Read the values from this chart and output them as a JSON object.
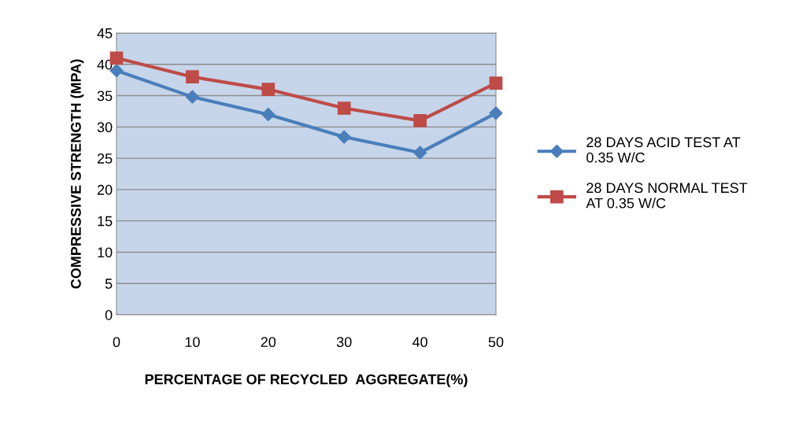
{
  "chart_data": {
    "type": "line",
    "xlabel": "PERCENTAGE OF RECYCLED  AGGREGATE(%)",
    "ylabel": "COMPRESSIVE STRENGTH (MPA)",
    "x": [
      0,
      10,
      20,
      30,
      40,
      50
    ],
    "xlim": [
      0,
      50
    ],
    "xticks": [
      0,
      10,
      20,
      30,
      40,
      50
    ],
    "ylim": [
      0,
      45
    ],
    "yticks": [
      0,
      5,
      10,
      15,
      20,
      25,
      30,
      35,
      40,
      45
    ],
    "grid": "y",
    "legend": "right",
    "series": [
      {
        "name": "28 DAYS ACID TEST AT\n0.35 W/C",
        "color": "#4a7ebb",
        "marker": "diamond",
        "values": [
          39,
          34.8,
          32,
          28.4,
          25.9,
          32.2
        ]
      },
      {
        "name": "28 DAYS NORMAL TEST\nAT 0.35 W/C",
        "color": "#be4b48",
        "marker": "square",
        "values": [
          41,
          38,
          36,
          33,
          31,
          37
        ]
      }
    ]
  }
}
